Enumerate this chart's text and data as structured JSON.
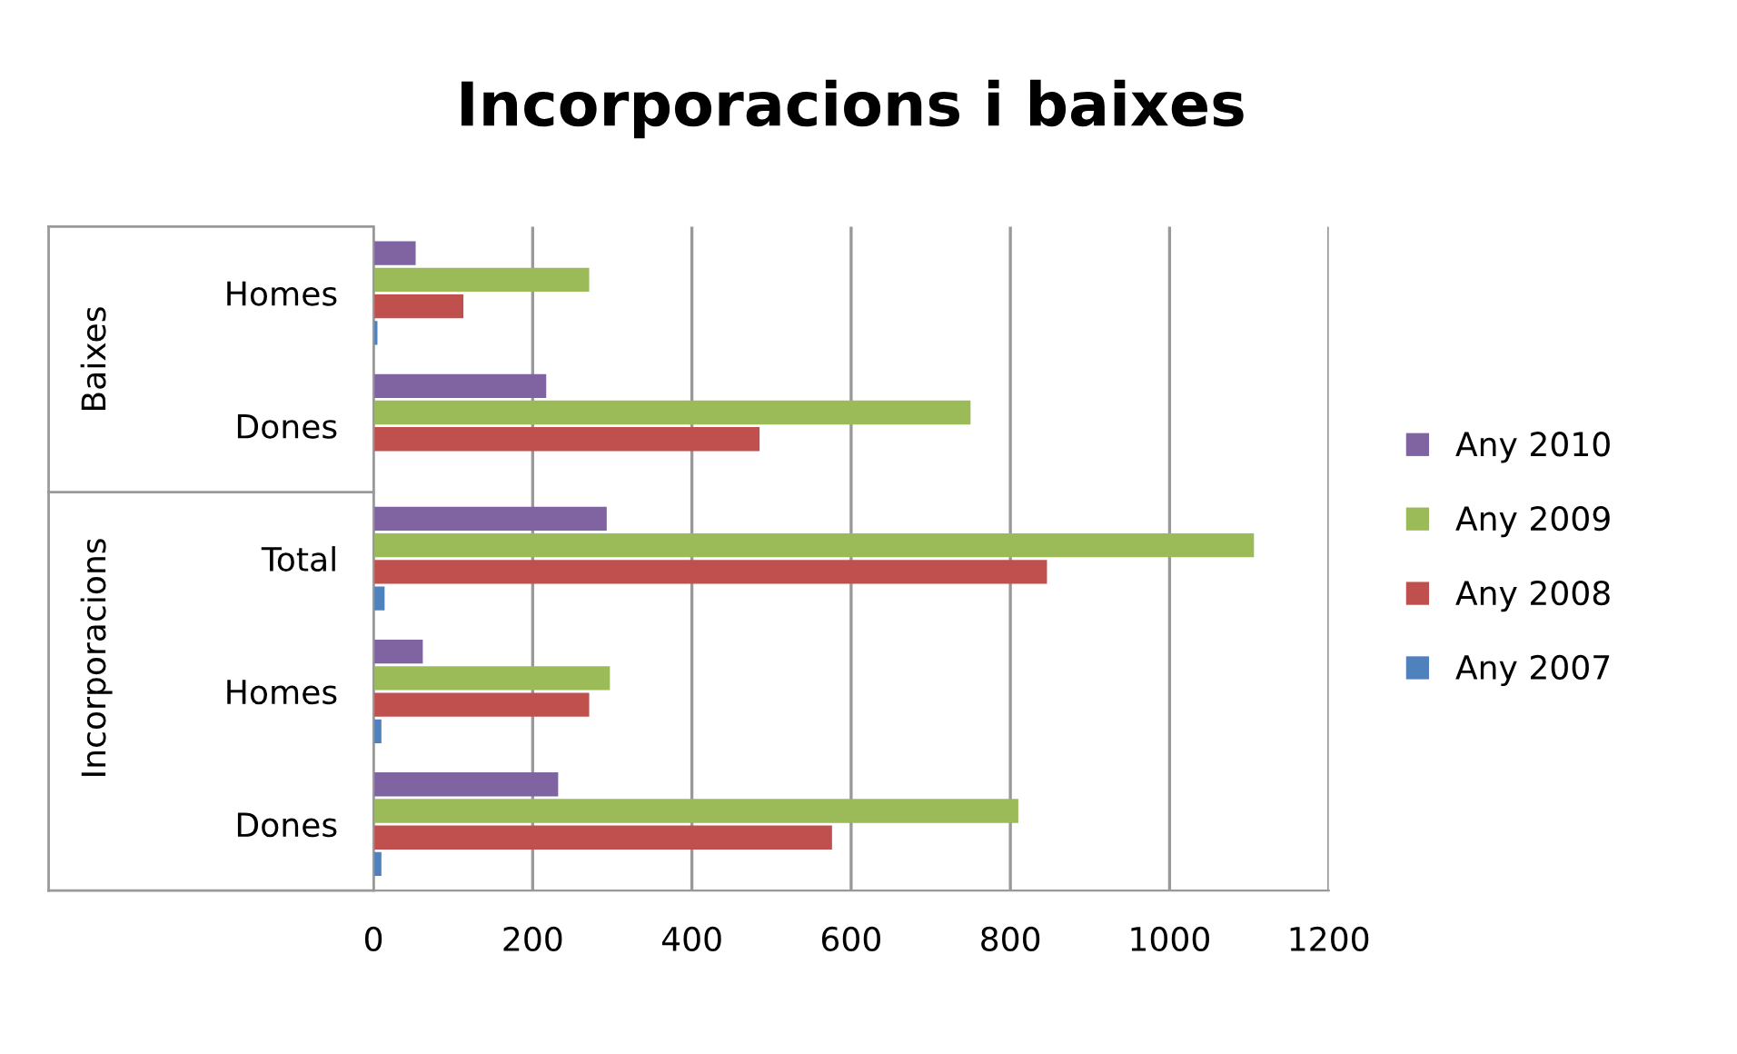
{
  "chart_data": {
    "type": "bar",
    "orientation": "horizontal",
    "title": "Incorporacions i baixes",
    "categories": [
      "Homes",
      "Dones",
      "Total",
      "Homes",
      "Dones"
    ],
    "annotations": [
      "Baixes",
      "Incorporacions"
    ],
    "series": [
      {
        "name": "Any 2007",
        "color": "#4f81bd",
        "values": [
          5,
          0,
          14,
          10,
          10
        ]
      },
      {
        "name": "Any 2008",
        "color": "#c0504d",
        "values": [
          113,
          485,
          846,
          271,
          576
        ]
      },
      {
        "name": "Any 2009",
        "color": "#9bbb59",
        "values": [
          271,
          750,
          1106,
          297,
          810
        ]
      },
      {
        "name": "Any 2010",
        "color": "#8064a2",
        "values": [
          53,
          217,
          293,
          62,
          232
        ]
      }
    ],
    "xlim": [
      0,
      1200
    ],
    "xticks": [
      0,
      200,
      400,
      600,
      800,
      1000,
      1200
    ],
    "grid": "x",
    "legend": "right"
  }
}
